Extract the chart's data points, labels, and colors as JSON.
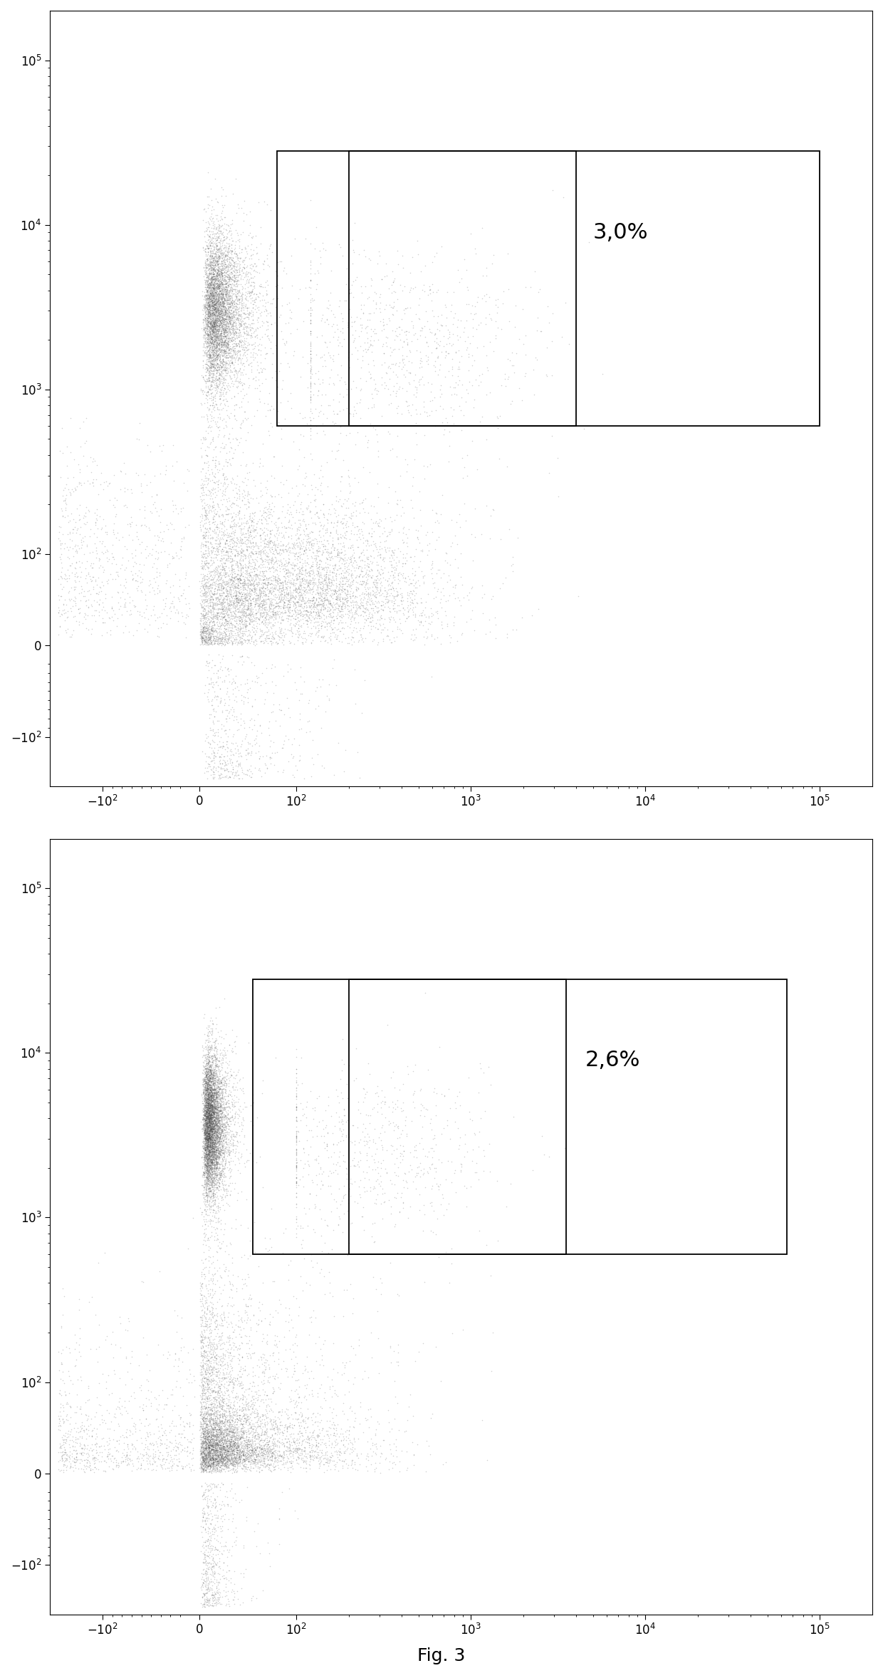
{
  "panel1_label": "3,0%",
  "panel2_label": "2,6%",
  "fig_label": "Fig. 3",
  "background_color": "#ffffff",
  "dot_color": "#444444",
  "scatter_alpha": 0.25,
  "scatter_size": 1.2,
  "n_points": 15000,
  "linthresh": 100,
  "linscale": 0.5
}
